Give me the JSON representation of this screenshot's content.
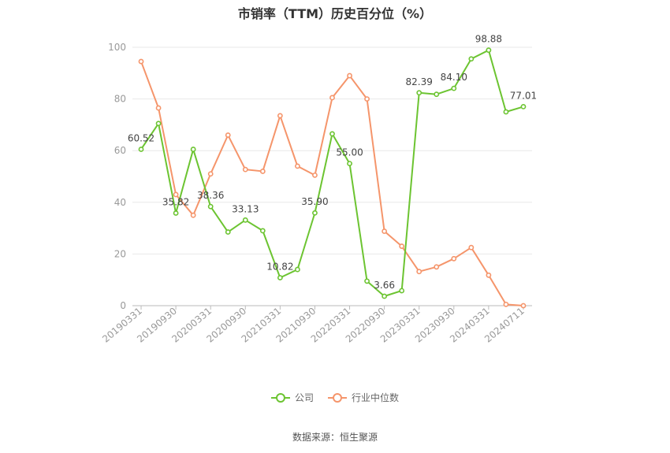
{
  "title": "市销率（TTM）历史百分位（%）",
  "source": "数据来源：恒生聚源",
  "colors": {
    "company": "#6cc431",
    "industry": "#f5956b",
    "grid": "#e8e8e8",
    "axis": "#999999"
  },
  "legend": [
    {
      "label": "公司",
      "color": "#6cc431"
    },
    {
      "label": "行业中位数",
      "color": "#f5956b"
    }
  ],
  "chart_data": {
    "type": "line",
    "title": "市销率（TTM）历史百分位（%）",
    "ylim": [
      0,
      100
    ],
    "yticks": [
      0,
      20,
      40,
      60,
      80,
      100
    ],
    "grid": true,
    "legend_position": "bottom",
    "x": [
      "20190331",
      "20190630",
      "20190930",
      "20191231",
      "20200331",
      "20200630",
      "20200930",
      "20201231",
      "20210331",
      "20210630",
      "20210930",
      "20211231",
      "20220331",
      "20220630",
      "20220930",
      "20221231",
      "20230331",
      "20230630",
      "20230930",
      "20231231",
      "20240331",
      "20240630",
      "20240711"
    ],
    "x_tick_labels": [
      "20190331",
      "20190930",
      "20200331",
      "20200930",
      "20210331",
      "20210930",
      "20220331",
      "20220930",
      "20230331",
      "20230930",
      "20240331",
      "20240711"
    ],
    "series": [
      {
        "name": "公司",
        "values": [
          60.52,
          70.5,
          35.82,
          60.5,
          38.36,
          28.5,
          33.13,
          29.0,
          10.82,
          14.0,
          35.9,
          66.5,
          55.0,
          9.5,
          3.66,
          5.8,
          82.39,
          81.8,
          84.1,
          95.5,
          98.88,
          75.0,
          77.01
        ],
        "labels": {
          "0": "60.52",
          "2": "35.82",
          "4": "38.36",
          "6": "33.13",
          "8": "10.82",
          "10": "35.90",
          "12": "55.00",
          "14": "3.66",
          "16": "82.39",
          "18": "84.10",
          "20": "98.88",
          "22": "77.01"
        }
      },
      {
        "name": "行业中位数",
        "values": [
          94.5,
          76.5,
          43.0,
          35.0,
          51.0,
          66.0,
          52.7,
          52.0,
          73.5,
          54.0,
          50.5,
          80.5,
          89.0,
          80.0,
          28.8,
          23.0,
          13.2,
          15.0,
          18.2,
          22.5,
          11.8,
          0.5,
          0.0
        ]
      }
    ]
  }
}
